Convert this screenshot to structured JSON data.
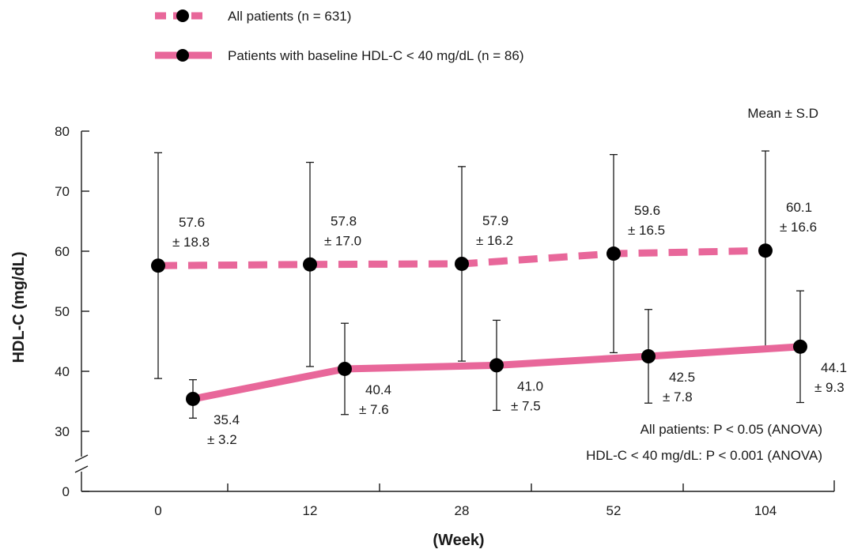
{
  "chart_data": {
    "type": "line",
    "ylabel": "HDL-C (mg/dL)",
    "xlabel": "(Week)",
    "ylim": [
      30,
      80
    ],
    "y_break": true,
    "y_break_tick": 0,
    "y_ticks": [
      80,
      70,
      60,
      50,
      40,
      30,
      0
    ],
    "categories": [
      "0",
      "12",
      "28",
      "52",
      "104"
    ],
    "grid": false,
    "legend_position": "top",
    "mean_sd_note": "Mean ± S.D",
    "series": [
      {
        "name": "All patients (n = 631)",
        "line_style": "dashed",
        "color": "#E8679A",
        "means": [
          57.6,
          57.8,
          57.9,
          59.6,
          60.1
        ],
        "sd": [
          18.8,
          17.0,
          16.2,
          16.5,
          16.6
        ],
        "labels": [
          "57.6\n± 18.8",
          "57.8\n± 17.0",
          "57.9\n± 16.2",
          "59.6\n± 16.5",
          "60.1\n± 16.6"
        ]
      },
      {
        "name": "Patients with baseline HDL-C < 40 mg/dL (n = 86)",
        "line_style": "solid",
        "color": "#E8679A",
        "means": [
          35.4,
          40.4,
          41.0,
          42.5,
          44.1
        ],
        "sd": [
          3.2,
          7.6,
          7.5,
          7.8,
          9.3
        ],
        "labels": [
          "35.4\n± 3.2",
          "40.4\n± 7.6",
          "41.0\n± 7.5",
          "42.5\n± 7.8",
          "44.1\n± 9.3"
        ]
      }
    ],
    "annotations": [
      "All patients: P < 0.05 (ANOVA)",
      "HDL-C < 40 mg/dL: P < 0.001 (ANOVA)"
    ]
  }
}
